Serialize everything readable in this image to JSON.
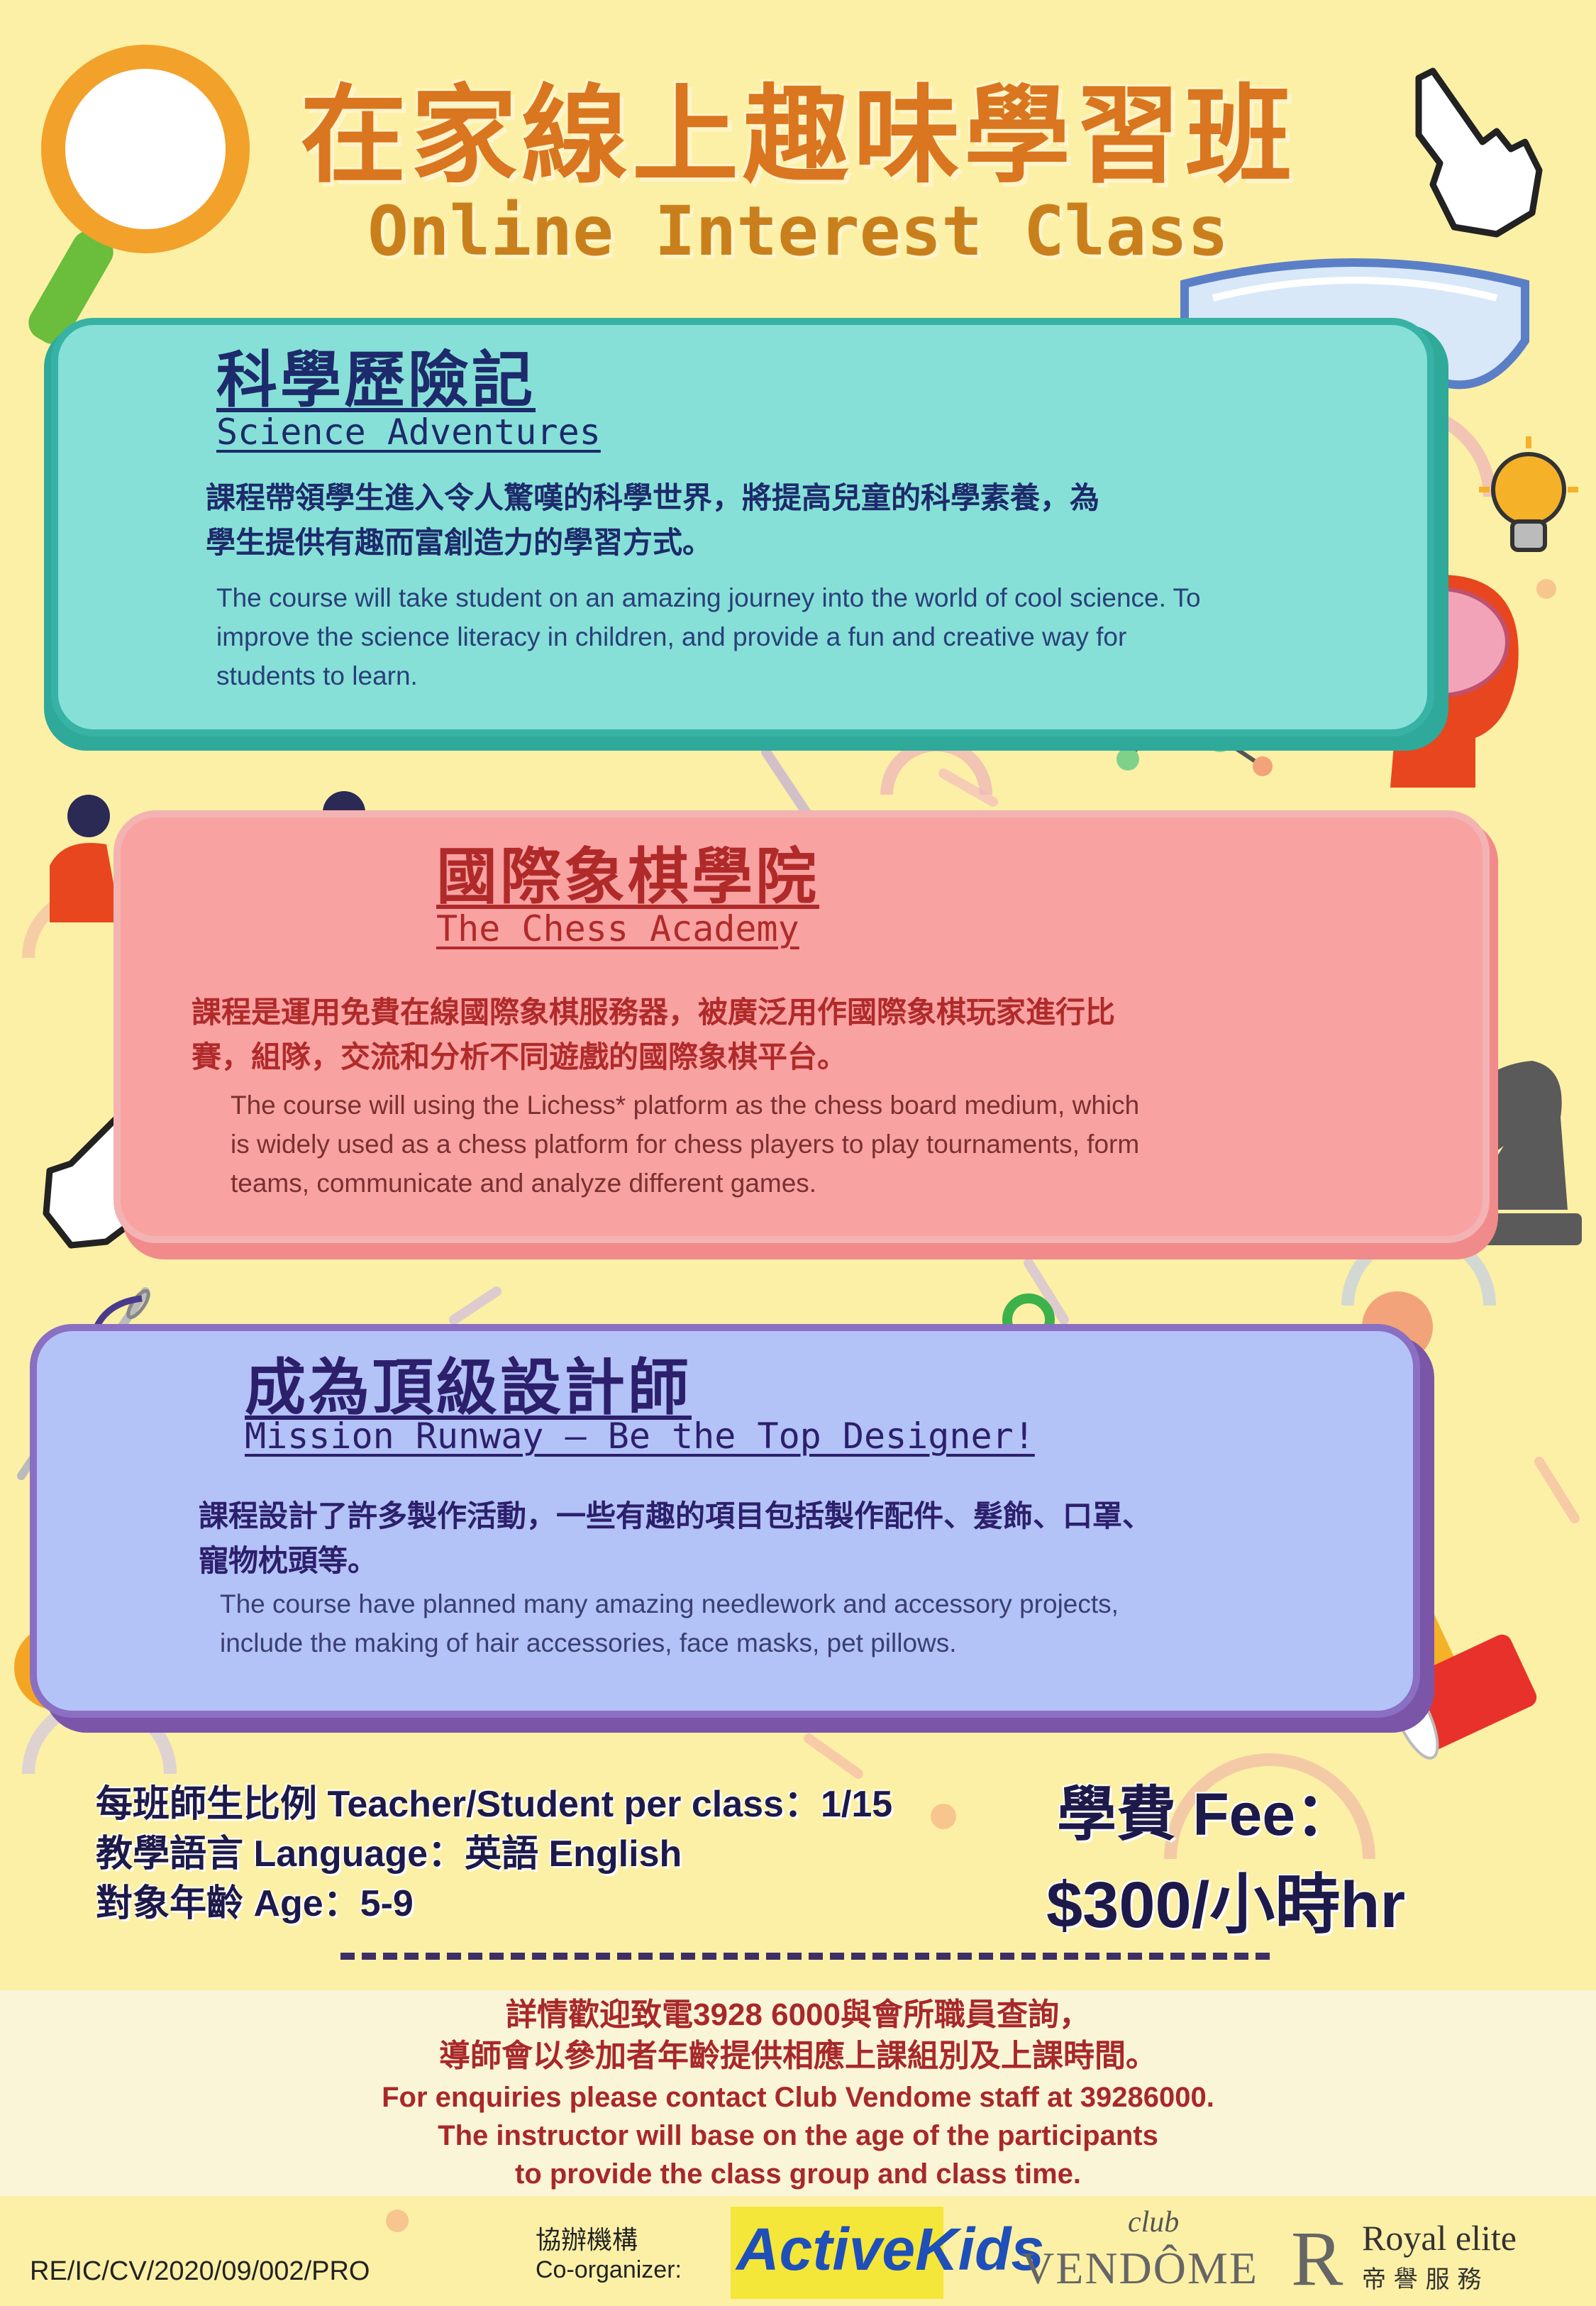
{
  "header": {
    "title_cn": "在家線上趣味學習班",
    "title_en": "Online Interest Class"
  },
  "courses": [
    {
      "title_cn": "科學歷險記",
      "title_en": "Science Adventures",
      "desc_cn_1": "課程帶領學生進入令人驚嘆的科學世界，將提高兒童的科學素養，為",
      "desc_cn_2": "學生提供有趣而富創造力的學習方式。",
      "desc_en_1": "The course will take student on an amazing journey into the world of cool science. To",
      "desc_en_2": "improve the science literacy in children, and provide a fun and creative way for",
      "desc_en_3": "students to learn."
    },
    {
      "title_cn": "國際象棋學院",
      "title_en": "The Chess Academy",
      "desc_cn_1": "課程是運用免費在線國際象棋服務器，被廣泛用作國際象棋玩家進行比",
      "desc_cn_2": "賽，組隊，交流和分析不同遊戲的國際象棋平台。",
      "desc_en_1": "The course will using the Lichess* platform as the chess board medium,  which",
      "desc_en_2": "is widely used as a chess platform for chess players to play tournaments, form",
      "desc_en_3": "teams, communicate and analyze different games."
    },
    {
      "title_cn": "成為頂級設計師",
      "title_en": "Mission Runway –  Be the Top Designer!",
      "desc_cn_1": "課程設計了許多製作活動，一些有趣的項目包括製作配件、髮飾、口罩、",
      "desc_cn_2": "寵物枕頭等。",
      "desc_en_1": "The course have planned many amazing needlework and accessory projects,",
      "desc_en_2": "include the making of hair accessories, face masks, pet pillows."
    }
  ],
  "info": {
    "ratio": "每班師生比例 Teacher/Student per class：1/15",
    "language": "教學語言 Language：英語 English",
    "age": "對象年齡 Age：5-9",
    "fee_label": "學費 Fee：",
    "fee_value": "$300/小時hr"
  },
  "footer": {
    "line1": "詳情歡迎致電3928  6000與會所職員查詢，",
    "line2": "導師會以參加者年齡提供相應上課組別及上課時間。",
    "line3": "For enquiries please contact Club Vendome staff at 39286000.",
    "line4": "The instructor will base on the age of the participants",
    "line5": "to provide the class group and class time.",
    "ref": "RE/IC/CV/2020/09/002/PRO",
    "coorg_cn": "協辦機構",
    "coorg_en": "Co-organizer:",
    "logo_activekids": "ActiveKids",
    "logo_club": "club",
    "logo_vendome": "VENDÔME",
    "logo_royal_mark": "R",
    "logo_royal": "Royal elite",
    "logo_royal_cn": "帝 譽 服 務"
  },
  "colors": {
    "background": "#fcf0a6",
    "science_card": "#86e0d7",
    "chess_card": "#f9a2a2",
    "designer_card": "#b3c2f7",
    "title_orange": "#d9761f",
    "heading_navy": "#1d2a6b",
    "heading_red": "#b02a2a",
    "heading_purple": "#2c1f6b"
  },
  "icons": [
    "magnifier-icon",
    "pointing-hand-icon",
    "goggles-icon",
    "microscope-icon",
    "atom-icon",
    "lightbulb-icon",
    "brain-head-icon",
    "molecule-icon",
    "chess-players-icon",
    "checkerboard-icon",
    "chess-king-icon",
    "chess-knight-icon",
    "needle-icon",
    "scissors-icon",
    "buttons-icon",
    "thread-spools-icon"
  ]
}
